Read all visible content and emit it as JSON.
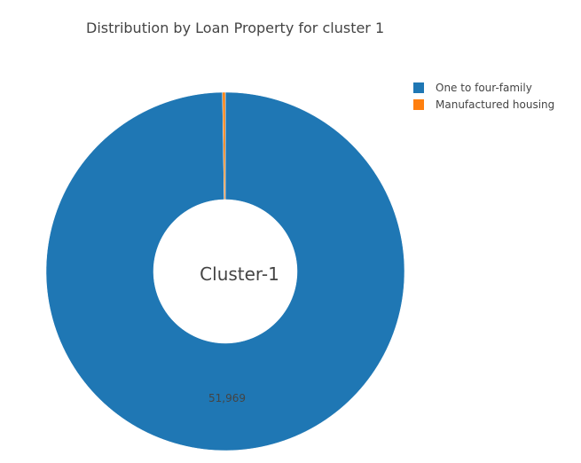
{
  "chart_data": {
    "type": "pie",
    "hole": true,
    "title": "Distribution by Loan Property for cluster 1",
    "center_label": "Cluster-1",
    "legend_position": "top-right",
    "slices": [
      {
        "label": "One to four-family",
        "value": 51969,
        "value_text": "51,969",
        "color": "#1f77b4"
      },
      {
        "label": "Manufactured housing",
        "value": 130,
        "value_text": "",
        "color": "#ff7f0e"
      }
    ]
  }
}
